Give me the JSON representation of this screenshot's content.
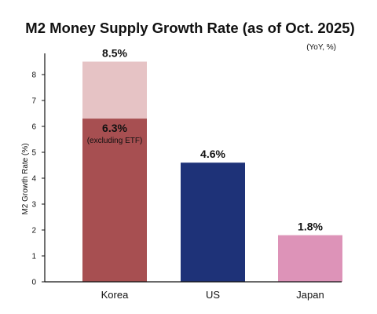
{
  "chart_data": {
    "type": "bar",
    "title": "M2 Money Supply Growth Rate (as of Oct. 2025)",
    "unit_note": "(YoY, %)",
    "ylabel": "M2 Growth Rate (%)",
    "xlabel": "",
    "ylim": [
      0,
      8.8
    ],
    "yticks": [
      0,
      1,
      2,
      3,
      4,
      5,
      6,
      7,
      8
    ],
    "grid": false,
    "categories": [
      "Korea",
      "US",
      "Japan"
    ],
    "values": [
      8.5,
      4.6,
      1.8
    ],
    "value_labels": [
      "8.5%",
      "4.6%",
      "1.8%"
    ],
    "bar_colors": [
      "#e6c3c5",
      "#1e3278",
      "#dd93b8"
    ],
    "sub_segment": {
      "category": "Korea",
      "value": 6.3,
      "value_label": "6.3%",
      "note": "(excluding ETF)",
      "color": "#a74f51"
    }
  }
}
